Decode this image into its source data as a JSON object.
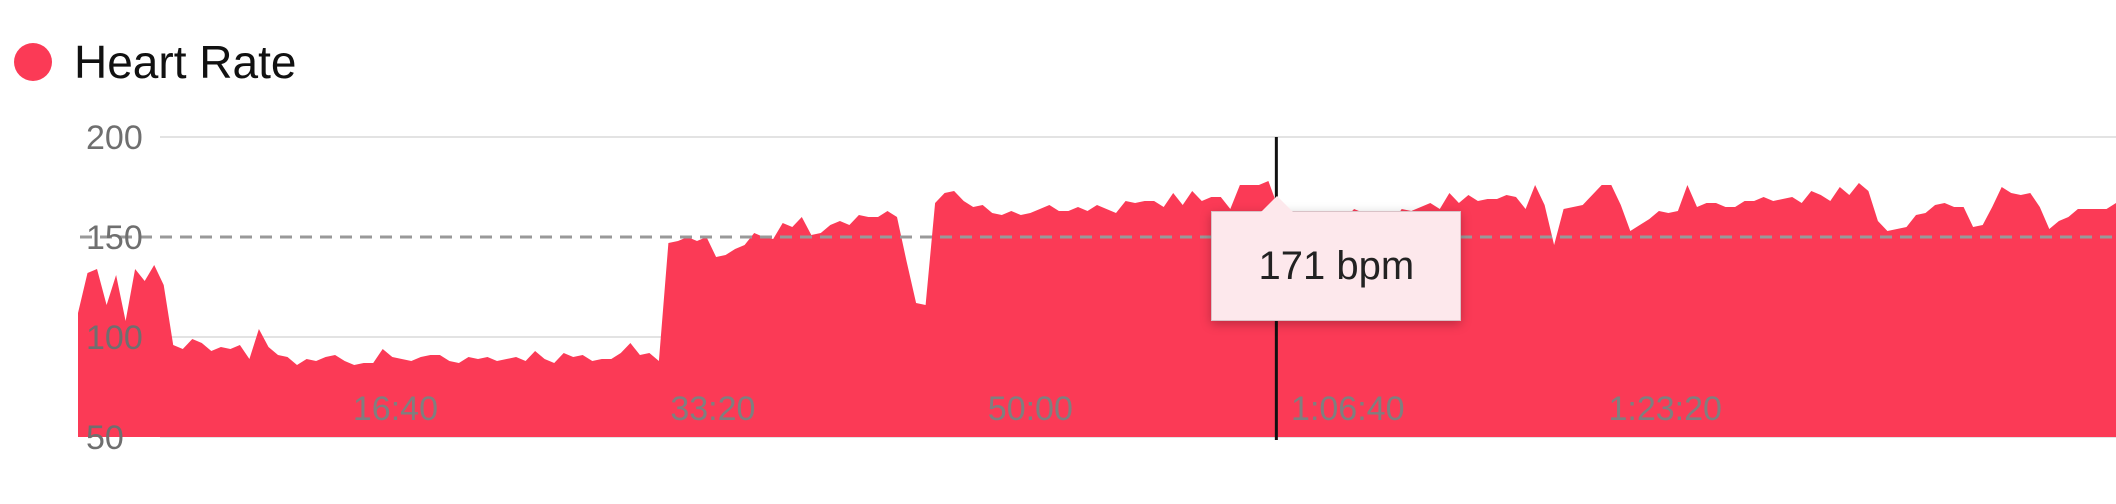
{
  "chart_data": {
    "type": "area",
    "series": [
      {
        "name": "Heart Rate",
        "color": "#fb3a56",
        "values": [
          112,
          132,
          134,
          116,
          131,
          108,
          134,
          128,
          136,
          126,
          96,
          94,
          99,
          97,
          93,
          95,
          94,
          96,
          89,
          104,
          95,
          91,
          90,
          86,
          89,
          88,
          90,
          91,
          88,
          86,
          87,
          87,
          94,
          90,
          89,
          88,
          90,
          91,
          91,
          88,
          87,
          90,
          89,
          90,
          88,
          89,
          90,
          88,
          93,
          89,
          87,
          92,
          90,
          91,
          88,
          89,
          89,
          92,
          97,
          91,
          92,
          88,
          147,
          148,
          150,
          148,
          150,
          140,
          141,
          144,
          146,
          152,
          150,
          149,
          157,
          155,
          160,
          151,
          152,
          156,
          158,
          156,
          161,
          160,
          160,
          163,
          160,
          138,
          117,
          116,
          167,
          172,
          173,
          168,
          165,
          166,
          162,
          161,
          163,
          161,
          162,
          164,
          166,
          163,
          163,
          165,
          163,
          166,
          164,
          162,
          168,
          167,
          168,
          168,
          165,
          172,
          166,
          173,
          168,
          170,
          170,
          164,
          176,
          176,
          176,
          178,
          165,
          142,
          143,
          147,
          158,
          160,
          163,
          159,
          164,
          162,
          159,
          161,
          157,
          164,
          163,
          165,
          167,
          164,
          172,
          167,
          171,
          168,
          169,
          169,
          171,
          170,
          164,
          176,
          166,
          146,
          164,
          165,
          166,
          171,
          176,
          176,
          166,
          153,
          156,
          159,
          163,
          162,
          163,
          176,
          165,
          167,
          167,
          165,
          165,
          168,
          168,
          170,
          168,
          169,
          170,
          167,
          173,
          171,
          168,
          175,
          171,
          177,
          173,
          158,
          153,
          154,
          155,
          161,
          162,
          166,
          167,
          165,
          165,
          155,
          156,
          165,
          175,
          172,
          171,
          172,
          165,
          154,
          158,
          160,
          164,
          164,
          164,
          164,
          167
        ]
      }
    ],
    "x_start_seconds": 0,
    "x_step_seconds": 30,
    "x_tick_seconds": [
      1000,
      2000,
      3000,
      4000,
      5000
    ],
    "x_tick_labels": [
      "16:40",
      "33:20",
      "50:00",
      "1:06:40",
      "1:23:20"
    ],
    "y_ticks": [
      50,
      100,
      150,
      200
    ],
    "ylim": [
      50,
      200
    ],
    "reference_line": 150,
    "hover": {
      "x_seconds": 3775,
      "value": 171,
      "label": "171 bpm"
    },
    "legend_placement": "top-left",
    "grid": true,
    "title": "",
    "xlabel": "",
    "ylabel": ""
  }
}
